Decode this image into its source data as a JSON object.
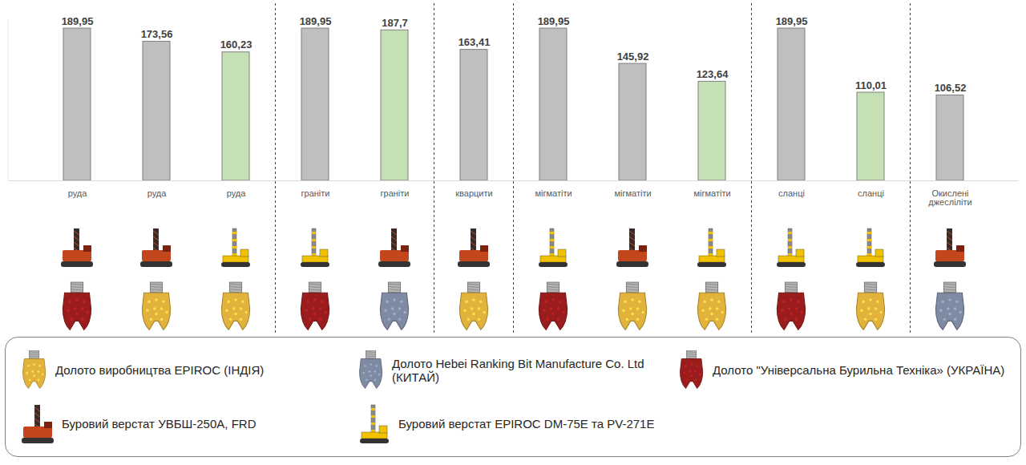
{
  "chart_data": {
    "type": "bar",
    "categories": [
      "руда",
      "руда",
      "руда",
      "граніти",
      "граніти",
      "кварцити",
      "мігматіти",
      "мігматіти",
      "мігматіти",
      "сланці",
      "сланці",
      "Окислені джесліліти"
    ],
    "values": [
      189.95,
      173.56,
      160.23,
      189.95,
      187.7,
      163.41,
      189.95,
      145.92,
      123.64,
      189.95,
      110.01,
      106.52
    ],
    "value_labels": [
      "189,95",
      "173,56",
      "160,23",
      "189,95",
      "187,7",
      "163,41",
      "189,95",
      "145,92",
      "123,64",
      "189,95",
      "110,01",
      "106,52"
    ],
    "colors": [
      "#bfbfbf",
      "#bfbfbf",
      "#c5e0b4",
      "#bfbfbf",
      "#c5e0b4",
      "#bfbfbf",
      "#bfbfbf",
      "#bfbfbf",
      "#c5e0b4",
      "#bfbfbf",
      "#c5e0b4",
      "#bfbfbf"
    ],
    "rigs": [
      0,
      0,
      1,
      1,
      0,
      0,
      1,
      0,
      1,
      1,
      1,
      0
    ],
    "bits": [
      2,
      0,
      0,
      2,
      1,
      0,
      2,
      0,
      0,
      2,
      0,
      1
    ],
    "bit_types": [
      {
        "name": "Долото виробництва EPIROC (ІНДІЯ)",
        "color": "#e2b33c"
      },
      {
        "name": "Долото Hebei Ranking Bit Manufacture Co. Ltd (КИТАЙ)",
        "color": "#7e8ba3"
      },
      {
        "name": "Долото \"Універсальна Бурильна Техніка» (УКРАЇНА)",
        "color": "#9b1c1c"
      }
    ],
    "rig_types": [
      {
        "name": "Буровий верстат УВБШ-250А, FRD",
        "color": "#c4461c"
      },
      {
        "name": "Буровий верстат EPIROC DM-75E та PV-271E",
        "color": "#f2c200"
      }
    ],
    "ylim": [
      0,
      200
    ],
    "yticks": [],
    "tick_labels": "x",
    "data_labels": true,
    "grid": false
  }
}
